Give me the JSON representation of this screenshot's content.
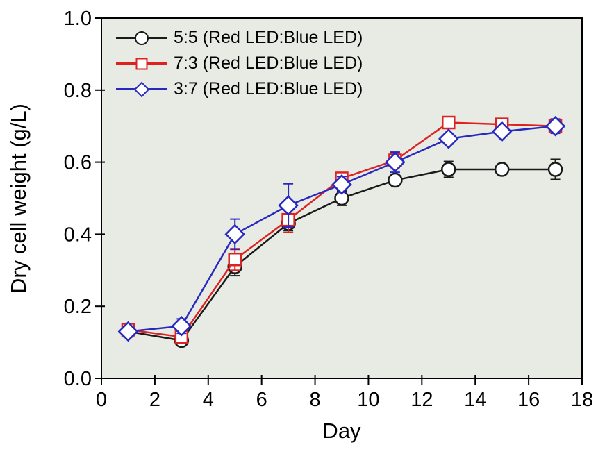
{
  "figure": {
    "background": "#ffffff",
    "plot_background": "#e8ebe4",
    "frame_color": "#000000",
    "text_color": "#000000"
  },
  "chart_data": {
    "type": "line",
    "title": "",
    "xlabel": "Day",
    "ylabel": "Dry cell weight (g/L)",
    "xlim": [
      0,
      18
    ],
    "ylim": [
      0.0,
      1.0
    ],
    "x_ticks": [
      0,
      2,
      4,
      6,
      8,
      10,
      12,
      14,
      16,
      18
    ],
    "y_ticks": [
      "0.0",
      "0.2",
      "0.4",
      "0.6",
      "0.8",
      "1.0"
    ],
    "grid": false,
    "legend_position": "top-left-inside",
    "error_bars": true,
    "x": [
      1,
      3,
      5,
      7,
      9,
      11,
      13,
      15,
      17
    ],
    "series": [
      {
        "name": "5:5 (Red LED:Blue LED)",
        "marker": "circle",
        "color": "#1a1a1a",
        "values": [
          0.13,
          0.105,
          0.31,
          0.43,
          0.5,
          0.55,
          0.58,
          0.58,
          0.58
        ],
        "errors": [
          0.01,
          0.012,
          0.025,
          0.02,
          0.02,
          0.012,
          0.022,
          0.008,
          0.028
        ]
      },
      {
        "name": "7:3 (Red LED:Blue LED)",
        "marker": "square",
        "color": "#dd2222",
        "values": [
          0.135,
          0.115,
          0.33,
          0.44,
          0.555,
          0.605,
          0.71,
          0.705,
          0.7
        ],
        "errors": [
          0.012,
          0.01,
          0.03,
          0.035,
          0.012,
          0.02,
          0.012,
          0.012,
          0.008
        ]
      },
      {
        "name": "3:7 (Red LED:Blue LED)",
        "marker": "diamond",
        "color": "#2929c0",
        "values": [
          0.13,
          0.145,
          0.4,
          0.48,
          0.538,
          0.6,
          0.665,
          0.685,
          0.7
        ],
        "errors": [
          0.015,
          0.02,
          0.042,
          0.06,
          0.022,
          0.028,
          0.015,
          0.012,
          0.02
        ]
      }
    ]
  }
}
